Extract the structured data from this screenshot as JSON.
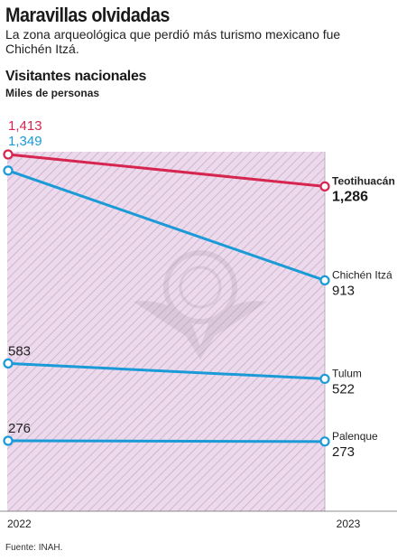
{
  "header": {
    "title": "Maravillas olvidadas",
    "subtitle": "La zona arqueológica que perdió más turismo mexicano fue Chichén Itzá."
  },
  "chart_data": {
    "type": "line",
    "title": "Visitantes nacionales",
    "ylabel": "Miles de personas",
    "x": [
      "2022",
      "2023"
    ],
    "series": [
      {
        "name": "Teotihuacán",
        "values": [
          1413,
          1286
        ],
        "labels": [
          "1,413",
          "1,286"
        ],
        "color": "#d6264f",
        "highlight": true
      },
      {
        "name": "Chichén Itzá",
        "values": [
          1349,
          913
        ],
        "labels": [
          "1,349",
          "913"
        ],
        "color": "#1a9ad6",
        "highlight": false
      },
      {
        "name": "Tulum",
        "values": [
          583,
          522
        ],
        "labels": [
          "583",
          "522"
        ],
        "color": "#1a9ad6",
        "highlight": false
      },
      {
        "name": "Palenque",
        "values": [
          276,
          273
        ],
        "labels": [
          "276",
          "273"
        ],
        "color": "#1a9ad6",
        "highlight": false
      }
    ],
    "background_fill": "#ecd9ec",
    "hatch_color": "#c5a8c5"
  },
  "footer": {
    "source": "Fuente: INAH."
  }
}
